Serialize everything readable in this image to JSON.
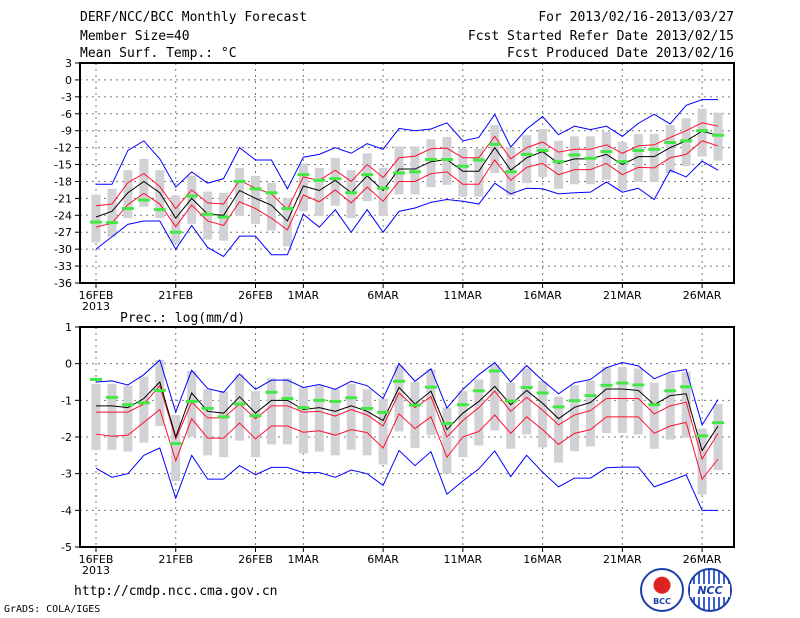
{
  "header": {
    "title": "DERF/NCC/BCC Monthly Forecast",
    "member_size": "Member Size=40",
    "period": "For 2013/02/16-2013/03/27",
    "refer_date": "Fcst Started Refer Date 2013/02/15",
    "produced_date": "Fcst Produced Date 2013/02/16"
  },
  "footer": {
    "url": "http://cmdp.ncc.cma.gov.cn",
    "credit": "GrADS: COLA/IGES",
    "logo_left": "BCC",
    "logo_right": "NCC"
  },
  "colors": {
    "mean": "#000000",
    "spread": "#ff1030",
    "extreme": "#0000ff",
    "obs": "#44e844",
    "box": "#d2d2d6"
  },
  "chart_data": [
    {
      "type": "line",
      "title": "Mean Surf. Temp.: °C",
      "ylim": [
        -36,
        3
      ],
      "yticks": [
        3,
        0,
        -3,
        -6,
        -9,
        -12,
        -15,
        -18,
        -21,
        -24,
        -27,
        -30,
        -33,
        -36
      ],
      "xtick_days": [
        0,
        5,
        10,
        13,
        18,
        23,
        28,
        33,
        38
      ],
      "xtick_labels": [
        "16FEB",
        "21FEB",
        "26FEB",
        "1MAR",
        "6MAR",
        "11MAR",
        "16MAR",
        "21MAR",
        "26MAR"
      ],
      "year_label": "2013",
      "grid": true,
      "series": [
        {
          "name": "mean",
          "values": [
            -24.3,
            -23.3,
            -20,
            -18,
            -20,
            -24.5,
            -21,
            -23.8,
            -24,
            -19.6,
            -21,
            -22.2,
            -25,
            -18.8,
            -19.6,
            -17.8,
            -20,
            -17,
            -19.6,
            -15.8,
            -15.8,
            -14.5,
            -14.1,
            -16.2,
            -16.2,
            -12,
            -16,
            -13.8,
            -12.7,
            -14.8,
            -14,
            -14,
            -13.2,
            -15,
            -13.6,
            -13.6,
            -12,
            -10.8,
            -9.1,
            -9.8
          ]
        },
        {
          "name": "upper_spread",
          "values": [
            -22.3,
            -22,
            -18.2,
            -16.6,
            -18.9,
            -22.8,
            -19.5,
            -21.8,
            -22,
            -17.8,
            -19.2,
            -20.2,
            -23,
            -17.2,
            -17.8,
            -16,
            -18,
            -15,
            -17.3,
            -13.8,
            -13.5,
            -12.2,
            -12.1,
            -13.8,
            -13.8,
            -10,
            -14,
            -12,
            -11,
            -12.8,
            -12.3,
            -12.3,
            -11.5,
            -13,
            -11.7,
            -11.5,
            -10.2,
            -9,
            -7.6,
            -8.2
          ]
        },
        {
          "name": "lower_spread",
          "values": [
            -26.1,
            -25.4,
            -22.1,
            -20.1,
            -22,
            -26,
            -22.2,
            -25,
            -25.8,
            -21.6,
            -22.8,
            -24.5,
            -26.6,
            -20.4,
            -21.6,
            -19.5,
            -21.8,
            -19,
            -21.5,
            -18,
            -18,
            -16.6,
            -16.3,
            -18.5,
            -18.5,
            -14.2,
            -17.8,
            -15.5,
            -14.8,
            -16.8,
            -15.9,
            -15.9,
            -14.8,
            -16.8,
            -15.5,
            -15.6,
            -13.8,
            -13.2,
            -10.8,
            -11.7
          ]
        },
        {
          "name": "max",
          "values": [
            -18.5,
            -18.5,
            -12.5,
            -10.8,
            -14,
            -19,
            -16.3,
            -18.3,
            -17.5,
            -12,
            -14.2,
            -14.2,
            -19.3,
            -13.7,
            -13.2,
            -12,
            -13,
            -11.3,
            -12.3,
            -8.6,
            -9,
            -8.7,
            -7.6,
            -10.8,
            -10.2,
            -6.1,
            -11.9,
            -8.7,
            -6.5,
            -9.7,
            -8.2,
            -8.8,
            -8.2,
            -10,
            -7.7,
            -6.1,
            -7.8,
            -4.5,
            -3.5,
            -3.5
          ]
        },
        {
          "name": "min",
          "values": [
            -30,
            -27.8,
            -25.6,
            -25,
            -25,
            -30,
            -25.8,
            -29.7,
            -31.3,
            -27.7,
            -27.7,
            -31,
            -31,
            -23.8,
            -26.1,
            -23,
            -27,
            -23,
            -27,
            -23.3,
            -22.7,
            -21.7,
            -21.2,
            -21.5,
            -22,
            -18.3,
            -20.2,
            -19.2,
            -19.3,
            -20.2,
            -20,
            -19.9,
            -18.1,
            -19.9,
            -19.2,
            -21.2,
            -16,
            -17.2,
            -14.4,
            -16
          ]
        },
        {
          "name": "observed",
          "values": [
            -25.2,
            -25.3,
            -22.8,
            -21.3,
            -23,
            -27,
            -20.6,
            -23.8,
            -24.3,
            -18,
            -19.3,
            -20,
            -22.8,
            -16.8,
            -17.8,
            -17.5,
            -20,
            -16.8,
            -19.2,
            -16.5,
            -16.3,
            -14.1,
            -14.1,
            -15.3,
            -14.2,
            -11.4,
            -16.3,
            -13.2,
            -12.5,
            -14.5,
            -13.3,
            -13.9,
            -12.7,
            -14.5,
            -12.5,
            -12.3,
            -11.1,
            -10.8,
            -9,
            -9.8
          ]
        },
        {
          "name": "box_high",
          "values": [
            -20.3,
            -19.3,
            -16,
            -14,
            -16,
            -20.5,
            -17,
            -19.8,
            -20,
            -15.6,
            -17,
            -18.2,
            -21,
            -14.8,
            -15.6,
            -13.8,
            -16,
            -13,
            -15.6,
            -11.8,
            -11.8,
            -10.5,
            -10.1,
            -12.2,
            -12.2,
            -8,
            -12,
            -9.8,
            -8.7,
            -10.8,
            -10,
            -10,
            -9.2,
            -11,
            -9.6,
            -9.6,
            -8,
            -6.8,
            -5.1,
            -5.8
          ]
        },
        {
          "name": "box_low",
          "values": [
            -28.8,
            -27.8,
            -24.5,
            -22.5,
            -24.5,
            -29,
            -25.5,
            -28.3,
            -28.5,
            -24.1,
            -25.5,
            -26.7,
            -29.5,
            -23.3,
            -24.1,
            -22.3,
            -24.5,
            -21.5,
            -24.1,
            -20.3,
            -20.3,
            -19,
            -18.6,
            -20.7,
            -20.7,
            -16.5,
            -20.5,
            -18.3,
            -17.2,
            -19.3,
            -18.5,
            -18.5,
            -17.7,
            -19.5,
            -18.1,
            -18.1,
            -16.5,
            -15.3,
            -13.6,
            -14.3
          ]
        }
      ]
    },
    {
      "type": "line",
      "title": "Prec.: log(mm/d)",
      "ylim": [
        -5,
        1
      ],
      "yticks": [
        1,
        0,
        -1,
        -2,
        -3,
        -4,
        -5
      ],
      "xtick_days": [
        0,
        5,
        10,
        13,
        18,
        23,
        28,
        33,
        38
      ],
      "xtick_labels": [
        "16FEB",
        "21FEB",
        "26FEB",
        "1MAR",
        "6MAR",
        "11MAR",
        "16MAR",
        "21MAR",
        "26MAR"
      ],
      "year_label": "2013",
      "grid": true,
      "series": [
        {
          "name": "mean",
          "values": [
            -1.15,
            -1.15,
            -1.2,
            -0.95,
            -0.5,
            -2.0,
            -0.8,
            -1.3,
            -1.35,
            -0.9,
            -1.35,
            -1.0,
            -1.0,
            -1.25,
            -1.2,
            -1.3,
            -1.15,
            -1.3,
            -1.55,
            -0.65,
            -1.1,
            -0.75,
            -1.8,
            -1.35,
            -1.03,
            -0.62,
            -1.12,
            -0.73,
            -1.08,
            -1.5,
            -1.19,
            -1.06,
            -0.69,
            -0.69,
            -0.73,
            -1.12,
            -0.87,
            -0.82,
            -2.37,
            -1.7
          ]
        },
        {
          "name": "upper_spread",
          "values": [
            -1.32,
            -1.32,
            -1.32,
            -1.1,
            -0.6,
            -2.05,
            -1.05,
            -1.48,
            -1.48,
            -1.1,
            -1.5,
            -1.15,
            -1.15,
            -1.32,
            -1.3,
            -1.43,
            -1.25,
            -1.4,
            -1.7,
            -0.8,
            -1.2,
            -0.9,
            -2.0,
            -1.55,
            -1.2,
            -0.75,
            -1.3,
            -0.92,
            -1.27,
            -1.67,
            -1.4,
            -1.28,
            -0.95,
            -0.95,
            -0.95,
            -1.37,
            -1.15,
            -1.05,
            -2.6,
            -1.9
          ]
        },
        {
          "name": "lower_spread",
          "values": [
            -1.92,
            -1.98,
            -1.95,
            -1.6,
            -1.25,
            -2.65,
            -1.5,
            -2.03,
            -2.03,
            -1.62,
            -2.05,
            -1.7,
            -1.7,
            -1.87,
            -1.83,
            -1.95,
            -1.8,
            -1.88,
            -2.3,
            -1.37,
            -1.77,
            -1.45,
            -2.55,
            -2.0,
            -1.85,
            -1.4,
            -1.9,
            -1.45,
            -1.8,
            -2.2,
            -1.9,
            -1.8,
            -1.45,
            -1.45,
            -1.45,
            -1.9,
            -1.7,
            -1.6,
            -3.15,
            -2.6
          ]
        },
        {
          "name": "max",
          "values": [
            -0.5,
            -0.47,
            -0.58,
            -0.3,
            0.1,
            -1.32,
            -0.18,
            -0.68,
            -0.78,
            -0.28,
            -0.7,
            -0.45,
            -0.45,
            -0.65,
            -0.57,
            -0.7,
            -0.48,
            -0.6,
            -0.95,
            0.0,
            -0.48,
            -0.14,
            -1.21,
            -0.7,
            -0.3,
            0.03,
            -0.5,
            -0.05,
            -0.46,
            -0.82,
            -0.52,
            -0.43,
            -0.11,
            0.03,
            -0.06,
            -0.41,
            -0.23,
            -0.16,
            -1.67,
            -0.98
          ]
        },
        {
          "name": "min",
          "values": [
            -2.85,
            -3.1,
            -3.0,
            -2.5,
            -2.3,
            -3.67,
            -2.5,
            -3.15,
            -3.15,
            -2.78,
            -3.03,
            -2.83,
            -2.83,
            -2.97,
            -2.97,
            -3.1,
            -2.9,
            -3.0,
            -3.32,
            -2.37,
            -2.78,
            -2.4,
            -3.56,
            -3.2,
            -2.87,
            -2.38,
            -3.08,
            -2.5,
            -2.96,
            -3.36,
            -3.12,
            -3.12,
            -2.84,
            -2.82,
            -2.82,
            -3.36,
            -3.2,
            -3.03,
            -4.0,
            -4.0
          ]
        },
        {
          "name": "observed",
          "values": [
            -0.43,
            -0.92,
            -1.12,
            -1.07,
            -0.73,
            -2.18,
            -1.03,
            -1.22,
            -1.45,
            -1.1,
            -1.42,
            -0.78,
            -0.95,
            -1.2,
            -1.0,
            -1.03,
            -0.93,
            -1.22,
            -1.33,
            -0.48,
            -1.13,
            -0.64,
            -1.63,
            -1.12,
            -0.74,
            -0.2,
            -1.02,
            -0.65,
            -0.8,
            -1.18,
            -1.01,
            -0.87,
            -0.59,
            -0.53,
            -0.58,
            -1.12,
            -0.74,
            -0.63,
            -1.97,
            -1.61
          ]
        },
        {
          "name": "box_high",
          "values": [
            -0.55,
            -0.55,
            -0.6,
            -0.35,
            0.1,
            -1.4,
            -0.2,
            -0.7,
            -0.75,
            -0.3,
            -0.75,
            -0.4,
            -0.4,
            -0.65,
            -0.6,
            -0.7,
            -0.55,
            -0.7,
            -0.95,
            -0.05,
            -0.5,
            -0.15,
            -1.2,
            -0.75,
            -0.43,
            -0.02,
            -0.52,
            -0.13,
            -0.48,
            -0.9,
            -0.59,
            -0.46,
            -0.09,
            -0.09,
            -0.13,
            -0.52,
            -0.27,
            -0.22,
            -1.77,
            -1.1
          ]
        },
        {
          "name": "box_low",
          "values": [
            -2.35,
            -2.35,
            -2.4,
            -2.15,
            -1.7,
            -3.2,
            -2.0,
            -2.5,
            -2.55,
            -2.1,
            -2.55,
            -2.2,
            -2.2,
            -2.45,
            -2.4,
            -2.5,
            -2.35,
            -2.5,
            -2.75,
            -1.85,
            -2.3,
            -1.95,
            -3.0,
            -2.55,
            -2.23,
            -1.82,
            -2.32,
            -1.93,
            -2.28,
            -2.7,
            -2.39,
            -2.26,
            -1.89,
            -1.89,
            -1.93,
            -2.32,
            -2.07,
            -2.02,
            -3.57,
            -2.9
          ]
        }
      ]
    }
  ]
}
